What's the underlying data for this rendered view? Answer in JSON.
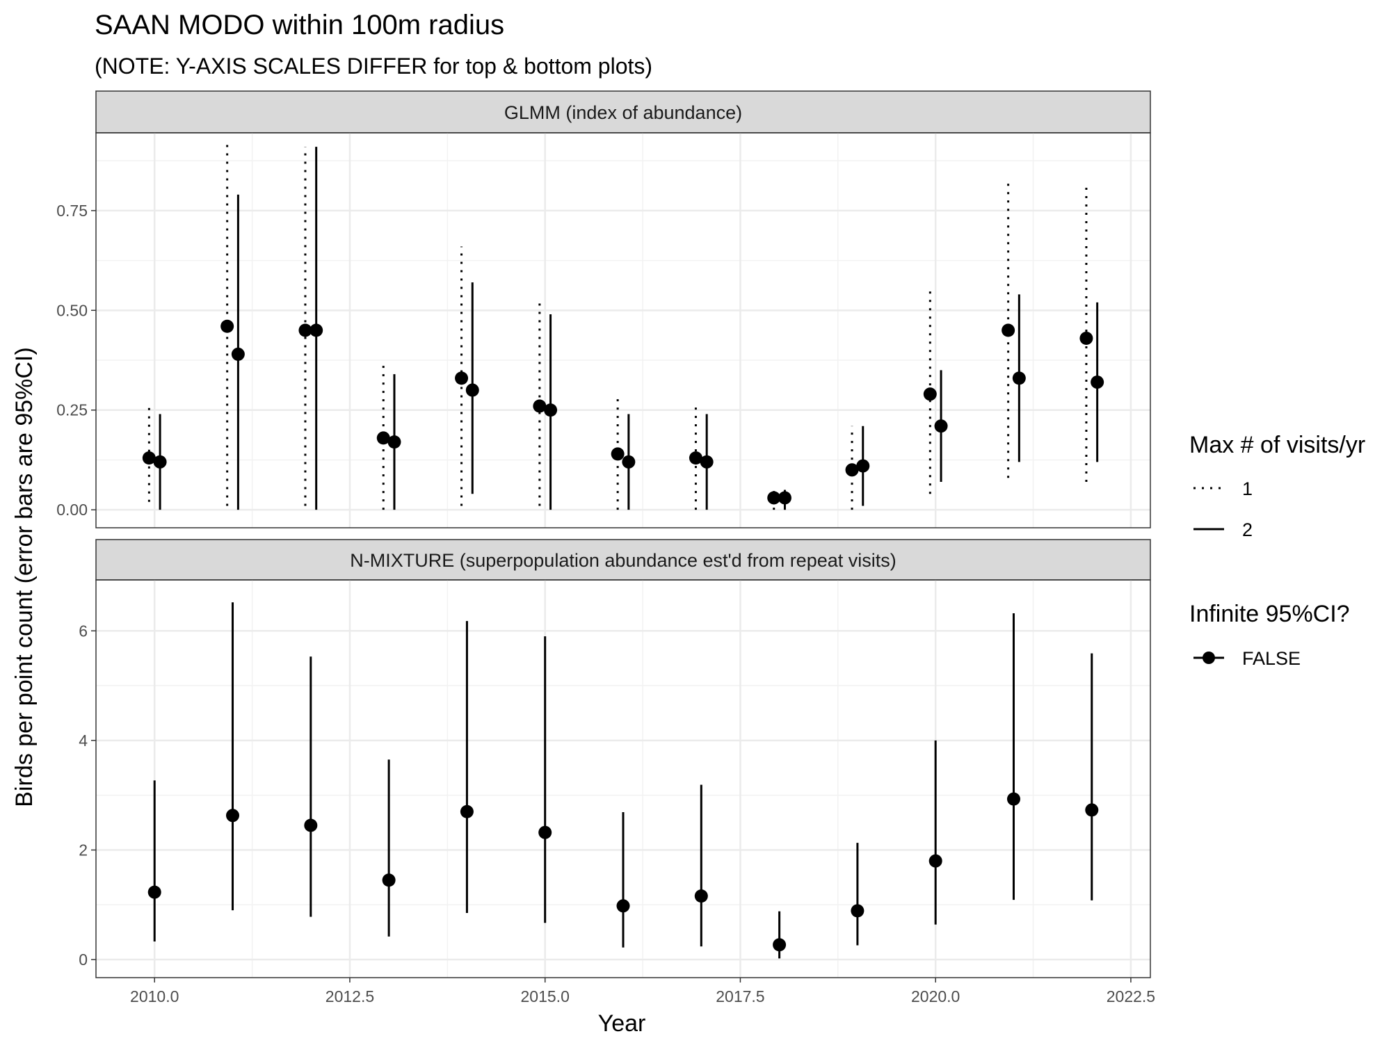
{
  "chart_data": {
    "type": "scatter",
    "title": "SAAN MODO within 100m radius",
    "subtitle": "(NOTE: Y-AXIS SCALES DIFFER for top & bottom plots)",
    "xlabel": "Year",
    "ylabel": "Birds per point count (error bars are 95%CI)",
    "xlim": [
      2009.25,
      2022.75
    ],
    "x_ticks": [
      2010.0,
      2012.5,
      2015.0,
      2017.5,
      2020.0,
      2022.5
    ],
    "x_tick_labels": [
      "2010.0",
      "2012.5",
      "2015.0",
      "2017.5",
      "2020.0",
      "2022.5"
    ],
    "grid": true,
    "legend": {
      "position": "right",
      "linetype_title": "Max # of visits/yr",
      "linetype_labels": [
        "1",
        "2"
      ],
      "infinite_title": "Infinite 95%CI?",
      "infinite_labels": [
        "FALSE"
      ]
    },
    "panels": [
      {
        "strip": "GLMM (index of abundance)",
        "ylim": [
          -0.045,
          0.945
        ],
        "y_ticks": [
          0.0,
          0.25,
          0.5,
          0.75
        ],
        "y_tick_labels": [
          "0.00",
          "0.25",
          "0.50",
          "0.75"
        ],
        "series": [
          {
            "name": "1",
            "linetype": "dotted",
            "points": [
              {
                "x": 2009.93,
                "y": 0.13,
                "lo": 0.02,
                "hi": 0.26
              },
              {
                "x": 2010.93,
                "y": 0.46,
                "lo": 0.01,
                "hi": 0.93
              },
              {
                "x": 2011.93,
                "y": 0.45,
                "lo": 0.01,
                "hi": 0.91
              },
              {
                "x": 2012.93,
                "y": 0.18,
                "lo": 0.0,
                "hi": 0.37
              },
              {
                "x": 2013.93,
                "y": 0.33,
                "lo": 0.01,
                "hi": 0.66
              },
              {
                "x": 2014.93,
                "y": 0.26,
                "lo": 0.01,
                "hi": 0.52
              },
              {
                "x": 2015.93,
                "y": 0.14,
                "lo": 0.0,
                "hi": 0.29
              },
              {
                "x": 2016.93,
                "y": 0.13,
                "lo": 0.0,
                "hi": 0.27
              },
              {
                "x": 2017.93,
                "y": 0.03,
                "lo": 0.0,
                "hi": 0.06
              },
              {
                "x": 2018.93,
                "y": 0.1,
                "lo": 0.0,
                "hi": 0.21
              },
              {
                "x": 2019.93,
                "y": 0.29,
                "lo": 0.04,
                "hi": 0.55
              },
              {
                "x": 2020.93,
                "y": 0.45,
                "lo": 0.08,
                "hi": 0.83
              },
              {
                "x": 2021.93,
                "y": 0.43,
                "lo": 0.07,
                "hi": 0.81
              }
            ]
          },
          {
            "name": "2",
            "linetype": "solid",
            "points": [
              {
                "x": 2010.07,
                "y": 0.12,
                "lo": 0.0,
                "hi": 0.24
              },
              {
                "x": 2011.07,
                "y": 0.39,
                "lo": 0.0,
                "hi": 0.79
              },
              {
                "x": 2012.07,
                "y": 0.45,
                "lo": 0.0,
                "hi": 0.91
              },
              {
                "x": 2013.07,
                "y": 0.17,
                "lo": 0.0,
                "hi": 0.34
              },
              {
                "x": 2014.07,
                "y": 0.3,
                "lo": 0.04,
                "hi": 0.57
              },
              {
                "x": 2015.07,
                "y": 0.25,
                "lo": 0.0,
                "hi": 0.49
              },
              {
                "x": 2016.07,
                "y": 0.12,
                "lo": 0.0,
                "hi": 0.24
              },
              {
                "x": 2017.07,
                "y": 0.12,
                "lo": 0.0,
                "hi": 0.24
              },
              {
                "x": 2018.07,
                "y": 0.03,
                "lo": 0.0,
                "hi": 0.05
              },
              {
                "x": 2019.07,
                "y": 0.11,
                "lo": 0.01,
                "hi": 0.21
              },
              {
                "x": 2020.07,
                "y": 0.21,
                "lo": 0.07,
                "hi": 0.35
              },
              {
                "x": 2021.07,
                "y": 0.33,
                "lo": 0.12,
                "hi": 0.54
              },
              {
                "x": 2022.07,
                "y": 0.32,
                "lo": 0.12,
                "hi": 0.52
              }
            ]
          }
        ]
      },
      {
        "strip": "N-MIXTURE (superpopulation abundance est'd from repeat visits)",
        "ylim": [
          -0.33,
          6.93
        ],
        "y_ticks": [
          0,
          2,
          4,
          6
        ],
        "y_tick_labels": [
          "0",
          "2",
          "4",
          "6"
        ],
        "series": [
          {
            "name": "2",
            "linetype": "solid",
            "points": [
              {
                "x": 2010,
                "y": 1.23,
                "lo": 0.33,
                "hi": 3.27
              },
              {
                "x": 2011,
                "y": 2.63,
                "lo": 0.9,
                "hi": 6.52
              },
              {
                "x": 2012,
                "y": 2.45,
                "lo": 0.78,
                "hi": 5.53
              },
              {
                "x": 2013,
                "y": 1.45,
                "lo": 0.42,
                "hi": 3.65
              },
              {
                "x": 2014,
                "y": 2.7,
                "lo": 0.85,
                "hi": 6.18
              },
              {
                "x": 2015,
                "y": 2.32,
                "lo": 0.67,
                "hi": 5.9
              },
              {
                "x": 2016,
                "y": 0.98,
                "lo": 0.22,
                "hi": 2.69
              },
              {
                "x": 2017,
                "y": 1.16,
                "lo": 0.24,
                "hi": 3.19
              },
              {
                "x": 2018,
                "y": 0.27,
                "lo": 0.02,
                "hi": 0.88
              },
              {
                "x": 2019,
                "y": 0.89,
                "lo": 0.26,
                "hi": 2.13
              },
              {
                "x": 2020,
                "y": 1.8,
                "lo": 0.64,
                "hi": 4.0
              },
              {
                "x": 2021,
                "y": 2.93,
                "lo": 1.09,
                "hi": 6.32
              },
              {
                "x": 2022,
                "y": 2.73,
                "lo": 1.08,
                "hi": 5.59
              }
            ]
          }
        ]
      }
    ]
  }
}
